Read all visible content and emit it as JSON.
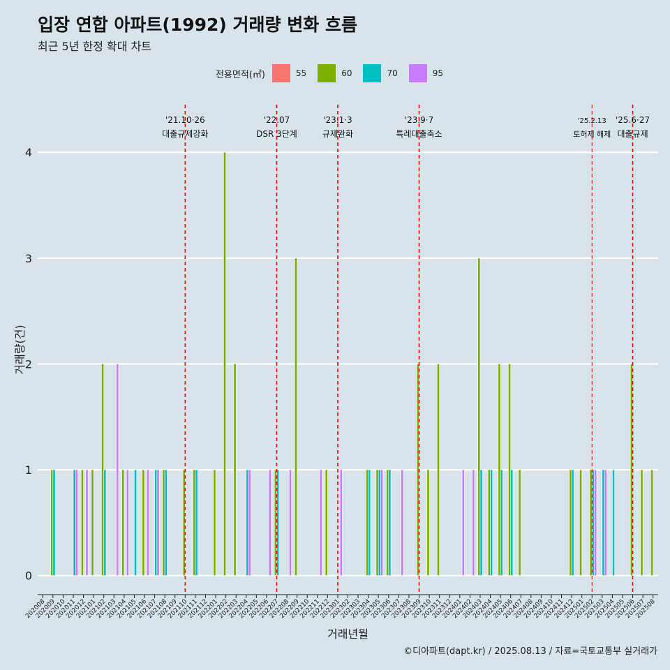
{
  "header": {
    "title": "입장 연합 아파트(1992) 거래량 변화 흐름",
    "subtitle": "최근 5년 한정 확대 차트"
  },
  "footer": {
    "caption": "©디아파트(dapt.kr) / 2025.08.13 / 자료=국토교통부 실거래가"
  },
  "legend": {
    "title": "전용면적(㎡)",
    "items": [
      {
        "label": "55",
        "color": "#F8766D"
      },
      {
        "label": "60",
        "color": "#7CAE00"
      },
      {
        "label": "70",
        "color": "#00BFC4"
      },
      {
        "label": "95",
        "color": "#C77CFF"
      }
    ]
  },
  "chart_data": {
    "type": "bar",
    "title": "입장 연합 아파트(1992) 거래량 변화 흐름",
    "xlabel": "거래년월",
    "ylabel": "거래량(건)",
    "ylim": [
      -0.18,
      4.45
    ],
    "yticks": [
      0,
      1,
      2,
      3,
      4
    ],
    "grid": true,
    "legend_position": "top",
    "categories": [
      "202008",
      "202009",
      "202010",
      "202011",
      "202012",
      "202101",
      "202102",
      "202103",
      "202104",
      "202105",
      "202106",
      "202107",
      "202108",
      "202109",
      "202110",
      "202111",
      "202112",
      "202201",
      "202202",
      "202203",
      "202204",
      "202205",
      "202206",
      "202207",
      "202208",
      "202209",
      "202210",
      "202211",
      "202212",
      "202301",
      "202302",
      "202303",
      "202304",
      "202305",
      "202306",
      "202307",
      "202308",
      "202309",
      "202310",
      "202311",
      "202312",
      "202401",
      "202402",
      "202403",
      "202404",
      "202405",
      "202406",
      "202407",
      "202408",
      "202409",
      "202410",
      "202411",
      "202412",
      "202501",
      "202502",
      "202503",
      "202504",
      "202505",
      "202506",
      "202507",
      "202508"
    ],
    "series": [
      {
        "name": "55",
        "color": "#F8766D",
        "values": [
          0,
          0,
          0,
          0,
          0,
          0,
          0,
          0,
          0,
          0,
          0,
          0,
          0,
          0,
          0,
          0,
          0,
          0,
          0,
          0,
          0,
          0,
          0,
          0,
          0,
          0,
          0,
          0,
          0,
          0,
          0,
          0,
          0,
          0,
          0,
          0,
          0,
          0,
          0,
          0,
          0,
          0,
          0,
          0,
          0,
          0,
          0,
          0,
          0,
          0,
          0,
          0,
          0,
          0,
          0,
          0,
          0,
          0,
          0,
          0,
          0
        ]
      },
      {
        "name": "60",
        "color": "#7CAE00",
        "values": [
          0,
          1,
          0,
          0,
          1,
          1,
          2,
          0,
          1,
          0,
          1,
          0,
          1,
          0,
          1,
          1,
          0,
          1,
          4,
          2,
          0,
          0,
          0,
          1,
          0,
          3,
          0,
          0,
          1,
          0,
          0,
          0,
          1,
          1,
          1,
          0,
          0,
          2,
          1,
          2,
          0,
          0,
          0,
          3,
          1,
          2,
          2,
          1,
          0,
          0,
          0,
          0,
          1,
          1,
          1,
          0,
          0,
          0,
          2,
          1,
          1
        ]
      },
      {
        "name": "70",
        "color": "#00BFC4",
        "values": [
          0,
          1,
          0,
          1,
          0,
          0,
          1,
          0,
          0,
          1,
          0,
          1,
          1,
          0,
          0,
          1,
          0,
          0,
          0,
          0,
          1,
          0,
          0,
          1,
          0,
          0,
          0,
          0,
          0,
          0,
          0,
          0,
          1,
          1,
          1,
          0,
          0,
          0,
          0,
          0,
          0,
          0,
          0,
          1,
          1,
          1,
          1,
          0,
          0,
          0,
          0,
          0,
          1,
          0,
          1,
          1,
          1,
          0,
          0,
          0,
          0
        ]
      },
      {
        "name": "95",
        "color": "#C77CFF",
        "values": [
          0,
          0,
          0,
          1,
          1,
          0,
          0,
          2,
          1,
          0,
          1,
          1,
          0,
          0,
          0,
          0,
          0,
          0,
          0,
          0,
          1,
          0,
          1,
          0,
          1,
          0,
          0,
          1,
          0,
          1,
          0,
          0,
          0,
          1,
          0,
          1,
          0,
          0,
          0,
          0,
          0,
          1,
          1,
          0,
          0,
          0,
          0,
          0,
          0,
          0,
          0,
          0,
          0,
          0,
          1,
          1,
          0,
          0,
          0,
          0,
          0
        ]
      }
    ],
    "annotations": [
      {
        "category": "202110",
        "date": "'21.10·26",
        "text": "대출규제강화",
        "small": false
      },
      {
        "category": "202207",
        "date": "'22.07",
        "text": "DSR 3단계",
        "small": false
      },
      {
        "category": "202301",
        "date": "'23.1·3",
        "text": "규제완화",
        "small": false
      },
      {
        "category": "202309",
        "date": "'23.9·7",
        "text": "특례대출축소",
        "small": false
      },
      {
        "category": "202502",
        "date": "'25.2.13",
        "text": "토허제 해제",
        "small": true
      },
      {
        "category": "202506",
        "date": "'25.6·27",
        "text": "대출규제",
        "small": false
      }
    ]
  }
}
